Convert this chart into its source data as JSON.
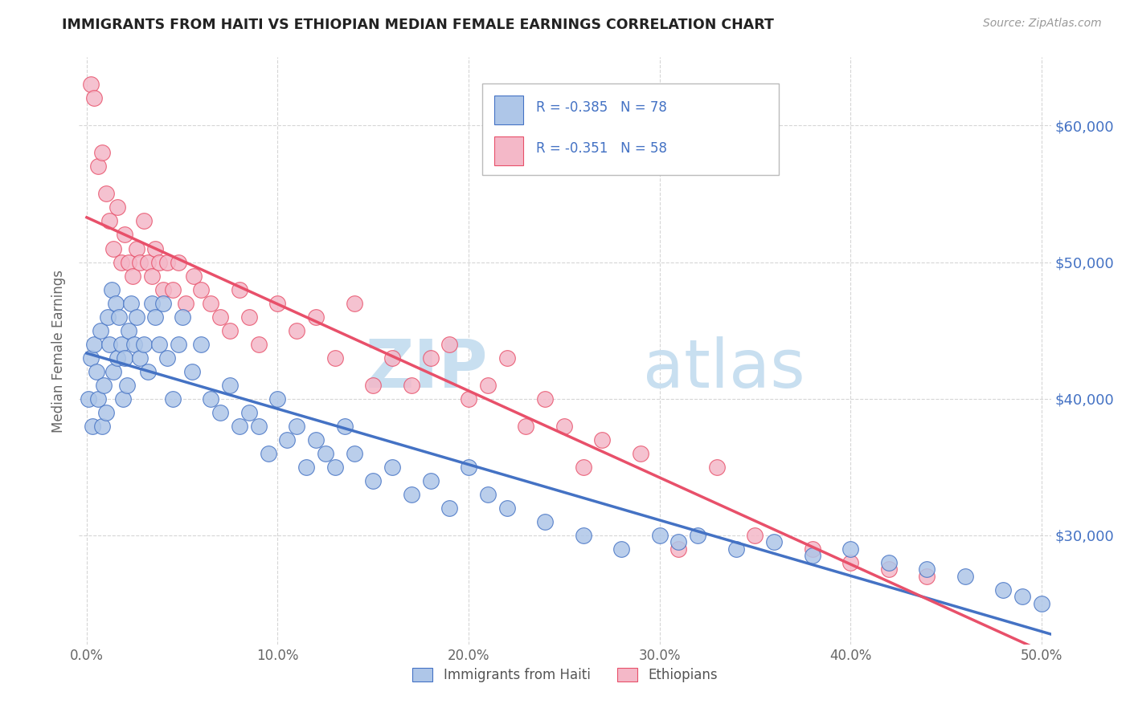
{
  "title": "IMMIGRANTS FROM HAITI VS ETHIOPIAN MEDIAN FEMALE EARNINGS CORRELATION CHART",
  "source": "Source: ZipAtlas.com",
  "ylabel": "Median Female Earnings",
  "x_tick_labels": [
    "0.0%",
    "10.0%",
    "20.0%",
    "30.0%",
    "40.0%",
    "50.0%"
  ],
  "x_tick_vals": [
    0.0,
    0.1,
    0.2,
    0.3,
    0.4,
    0.5
  ],
  "y_tick_labels": [
    "$30,000",
    "$40,000",
    "$50,000",
    "$60,000"
  ],
  "y_tick_vals": [
    30000,
    40000,
    50000,
    60000
  ],
  "xlim": [
    -0.004,
    0.505
  ],
  "ylim": [
    22000,
    65000
  ],
  "haiti_R": "-0.385",
  "haiti_N": "78",
  "ethiopian_R": "-0.351",
  "ethiopian_N": "58",
  "haiti_color": "#aec6e8",
  "ethiopian_color": "#f4b8c8",
  "haiti_line_color": "#4472c4",
  "ethiopian_line_color": "#e8506a",
  "haiti_x": [
    0.001,
    0.002,
    0.003,
    0.004,
    0.005,
    0.006,
    0.007,
    0.008,
    0.009,
    0.01,
    0.011,
    0.012,
    0.013,
    0.014,
    0.015,
    0.016,
    0.017,
    0.018,
    0.019,
    0.02,
    0.021,
    0.022,
    0.023,
    0.025,
    0.026,
    0.028,
    0.03,
    0.032,
    0.034,
    0.036,
    0.038,
    0.04,
    0.042,
    0.045,
    0.048,
    0.05,
    0.055,
    0.06,
    0.065,
    0.07,
    0.075,
    0.08,
    0.085,
    0.09,
    0.095,
    0.1,
    0.105,
    0.11,
    0.115,
    0.12,
    0.125,
    0.13,
    0.135,
    0.14,
    0.15,
    0.16,
    0.17,
    0.18,
    0.19,
    0.2,
    0.21,
    0.22,
    0.24,
    0.26,
    0.28,
    0.3,
    0.31,
    0.32,
    0.34,
    0.36,
    0.38,
    0.4,
    0.42,
    0.44,
    0.46,
    0.48,
    0.49,
    0.5
  ],
  "haiti_y": [
    40000,
    43000,
    38000,
    44000,
    42000,
    40000,
    45000,
    38000,
    41000,
    39000,
    46000,
    44000,
    48000,
    42000,
    47000,
    43000,
    46000,
    44000,
    40000,
    43000,
    41000,
    45000,
    47000,
    44000,
    46000,
    43000,
    44000,
    42000,
    47000,
    46000,
    44000,
    47000,
    43000,
    40000,
    44000,
    46000,
    42000,
    44000,
    40000,
    39000,
    41000,
    38000,
    39000,
    38000,
    36000,
    40000,
    37000,
    38000,
    35000,
    37000,
    36000,
    35000,
    38000,
    36000,
    34000,
    35000,
    33000,
    34000,
    32000,
    35000,
    33000,
    32000,
    31000,
    30000,
    29000,
    30000,
    29500,
    30000,
    29000,
    29500,
    28500,
    29000,
    28000,
    27500,
    27000,
    26000,
    25500,
    25000
  ],
  "ethiopian_x": [
    0.002,
    0.004,
    0.006,
    0.008,
    0.01,
    0.012,
    0.014,
    0.016,
    0.018,
    0.02,
    0.022,
    0.024,
    0.026,
    0.028,
    0.03,
    0.032,
    0.034,
    0.036,
    0.038,
    0.04,
    0.042,
    0.045,
    0.048,
    0.052,
    0.056,
    0.06,
    0.065,
    0.07,
    0.075,
    0.08,
    0.085,
    0.09,
    0.1,
    0.11,
    0.12,
    0.13,
    0.14,
    0.15,
    0.16,
    0.17,
    0.18,
    0.19,
    0.2,
    0.21,
    0.22,
    0.23,
    0.24,
    0.25,
    0.26,
    0.27,
    0.29,
    0.31,
    0.33,
    0.35,
    0.38,
    0.4,
    0.42,
    0.44
  ],
  "ethiopian_y": [
    63000,
    62000,
    57000,
    58000,
    55000,
    53000,
    51000,
    54000,
    50000,
    52000,
    50000,
    49000,
    51000,
    50000,
    53000,
    50000,
    49000,
    51000,
    50000,
    48000,
    50000,
    48000,
    50000,
    47000,
    49000,
    48000,
    47000,
    46000,
    45000,
    48000,
    46000,
    44000,
    47000,
    45000,
    46000,
    43000,
    47000,
    41000,
    43000,
    41000,
    43000,
    44000,
    40000,
    41000,
    43000,
    38000,
    40000,
    38000,
    35000,
    37000,
    36000,
    29000,
    35000,
    30000,
    29000,
    28000,
    27500,
    27000
  ],
  "watermark_zip_color": "#c8dff0",
  "watermark_atlas_color": "#c8dff0"
}
